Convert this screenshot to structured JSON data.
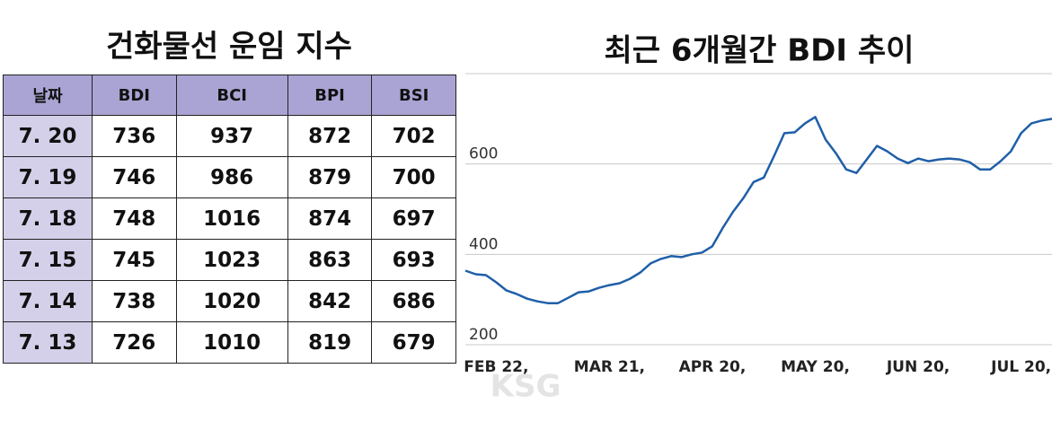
{
  "header": {
    "title": "건화물선 운임 지수"
  },
  "table": {
    "columns": [
      "날짜",
      "BDI",
      "BCI",
      "BPI",
      "BSI"
    ],
    "rows": [
      [
        "7. 20",
        "736",
        "937",
        "872",
        "702"
      ],
      [
        "7. 19",
        "746",
        "986",
        "879",
        "700"
      ],
      [
        "7. 18",
        "748",
        "1016",
        "874",
        "697"
      ],
      [
        "7. 15",
        "745",
        "1023",
        "863",
        "693"
      ],
      [
        "7. 14",
        "738",
        "1020",
        "842",
        "686"
      ],
      [
        "7. 13",
        "726",
        "1010",
        "819",
        "679"
      ]
    ]
  },
  "watermark": "KSG",
  "chart_data": {
    "type": "line",
    "title": "최근 6개월간 BDI 추이",
    "categories": [
      null,
      null,
      null,
      "FEB 22,",
      null,
      null,
      null,
      null,
      null,
      null,
      null,
      null,
      null,
      null,
      "MAR 21,",
      null,
      null,
      null,
      null,
      null,
      null,
      null,
      null,
      null,
      "APR 20,",
      null,
      null,
      null,
      null,
      null,
      null,
      null,
      null,
      null,
      "MAY 20,",
      null,
      null,
      null,
      null,
      null,
      null,
      null,
      null,
      null,
      "JUN 20,",
      null,
      null,
      null,
      null,
      null,
      null,
      null,
      null,
      null,
      "JUL 20,",
      null,
      null,
      null
    ],
    "series": [
      {
        "name": "BDI",
        "color": "#1f5fa8",
        "values": [
          364,
          356,
          354,
          338,
          320,
          312,
          302,
          296,
          292,
          292,
          304,
          316,
          318,
          326,
          332,
          336,
          346,
          360,
          380,
          390,
          396,
          394,
          400,
          404,
          418,
          458,
          494,
          524,
          560,
          570,
          618,
          668,
          670,
          690,
          704,
          654,
          624,
          588,
          580,
          610,
          640,
          628,
          612,
          602,
          612,
          606,
          610,
          612,
          610,
          604,
          588,
          588,
          606,
          628,
          668,
          690,
          696,
          700
        ]
      }
    ],
    "ylim": [
      200,
      800
    ],
    "yticks": [
      200,
      400,
      600
    ],
    "grid": true
  }
}
